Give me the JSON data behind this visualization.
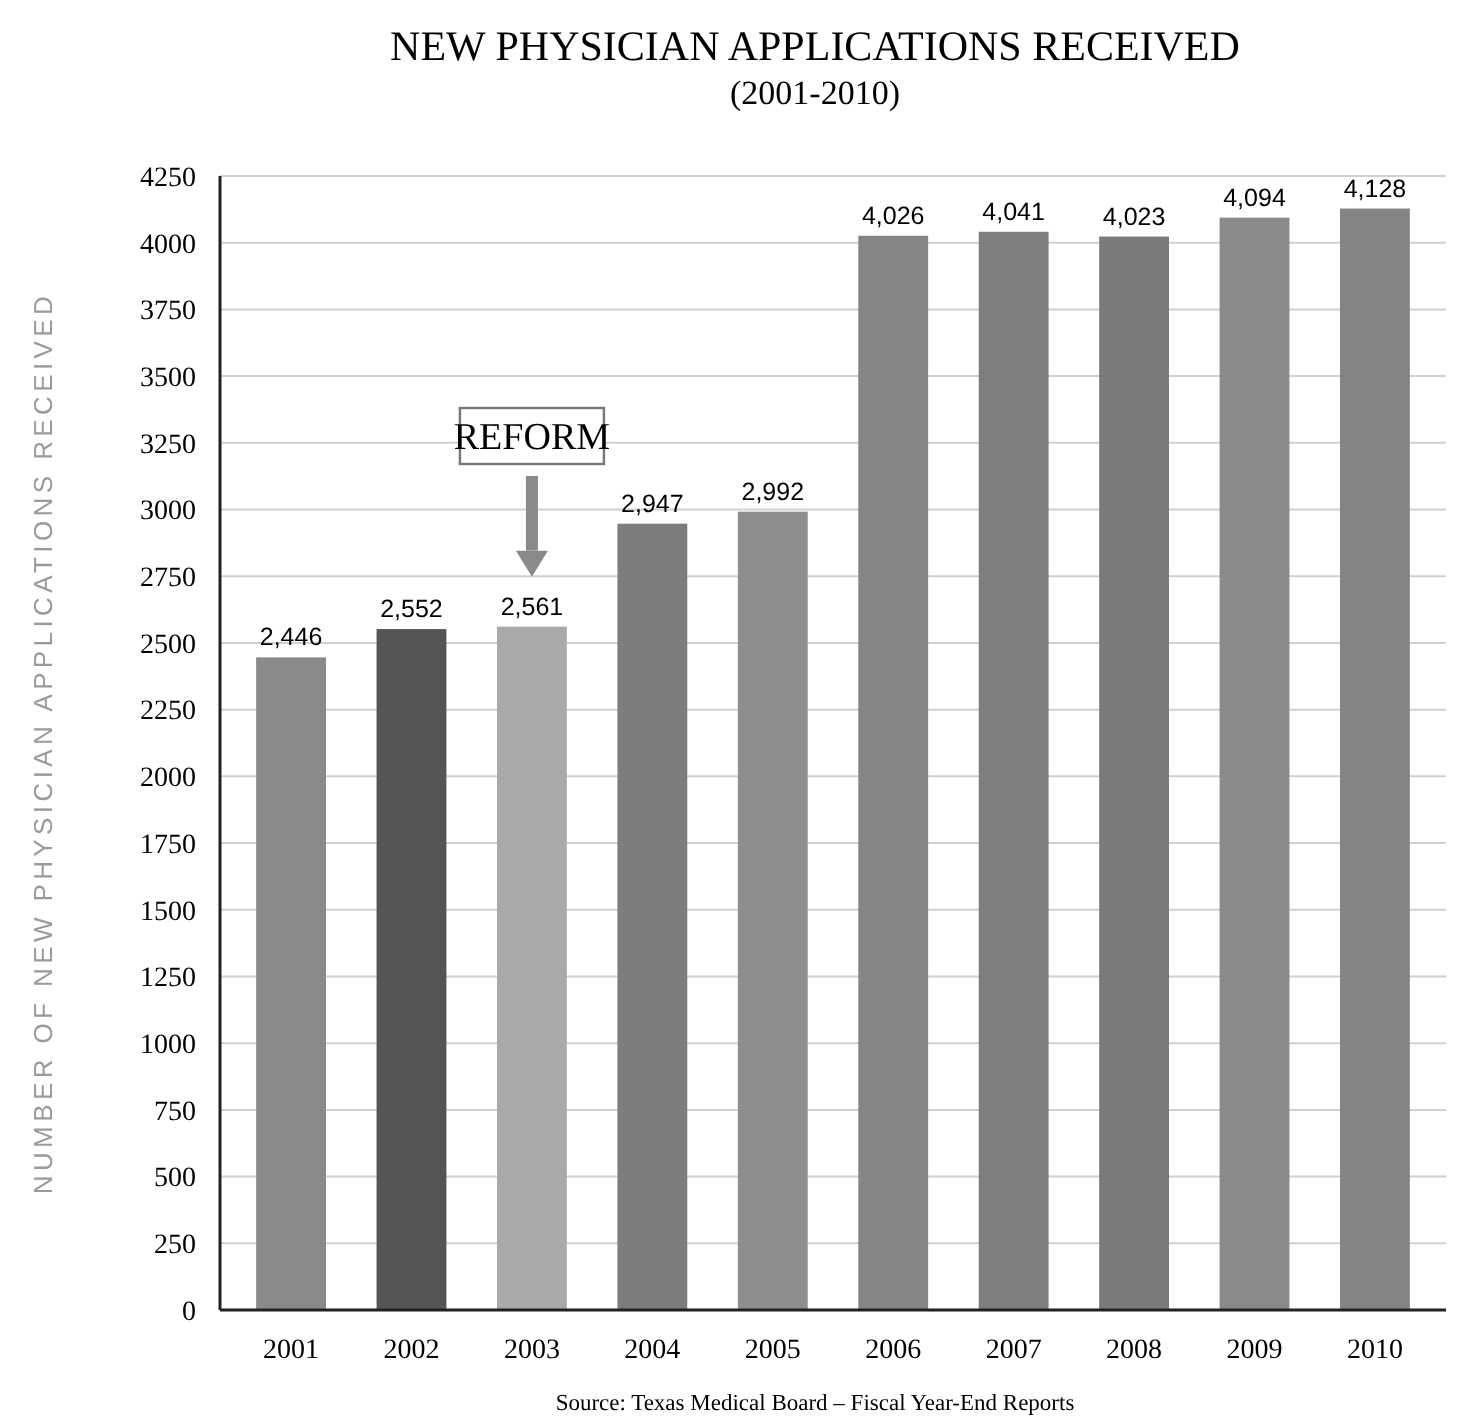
{
  "chart_data": {
    "type": "bar",
    "title": "NEW PHYSICIAN APPLICATIONS RECEIVED",
    "subtitle": "(2001-2010)",
    "ylabel": "NUMBER OF NEW PHYSICIAN APPLICATIONS RECEIVED",
    "categories": [
      "2001",
      "2002",
      "2003",
      "2004",
      "2005",
      "2006",
      "2007",
      "2008",
      "2009",
      "2010"
    ],
    "values": [
      2446,
      2552,
      2561,
      2947,
      2992,
      4026,
      4041,
      4023,
      4094,
      4128
    ],
    "colors": [
      "#8a8a8a",
      "#555555",
      "#a9a9a9",
      "#7d7d7d",
      "#8e8e8e",
      "#858585",
      "#7e7e7e",
      "#7a7a7a",
      "#8a8a8a",
      "#848484"
    ],
    "value_labels": [
      "2,446",
      "2,552",
      "2,561",
      "2,947",
      "2,992",
      "4,026",
      "4,041",
      "4,023",
      "4,094",
      "4,128"
    ],
    "ylim": [
      0,
      4250
    ],
    "yticks": [
      0,
      250,
      500,
      750,
      1000,
      1250,
      1500,
      1750,
      2000,
      2250,
      2500,
      2750,
      3000,
      3250,
      3500,
      3750,
      4000,
      4250
    ],
    "grid": "y",
    "annotations": [
      "REFORM",
      "Source:    Texas Medical Board – Fiscal Year-End Reports"
    ]
  }
}
